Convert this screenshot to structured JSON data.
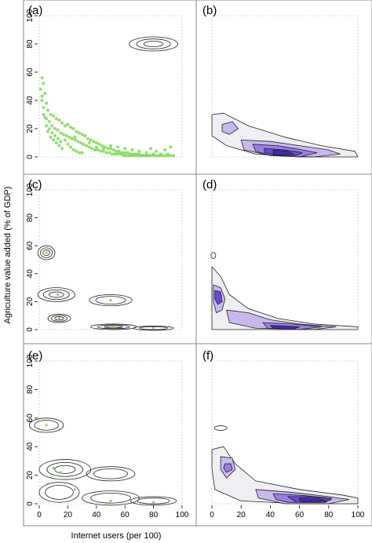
{
  "figure": {
    "ylabel": "Agriculture value added (% of GDP)",
    "xlabel": "Internet users (per 100)",
    "panel_labels": [
      "(a)",
      "(b)",
      "(c)",
      "(d)",
      "(e)",
      "(f)"
    ],
    "x_ticks": [
      "0",
      "20",
      "40",
      "60",
      "80",
      "100"
    ],
    "y_ticks": [
      "0",
      "20",
      "40",
      "60",
      "80",
      "100"
    ]
  },
  "colors": {
    "points": "#7ed957",
    "contour_line": "#222222",
    "fill_levels": [
      "#efeff3",
      "#c8b8ee",
      "#9a7fe6",
      "#6a48d6",
      "#4527b8"
    ],
    "panel_border": "#888888",
    "plot_box": "#cccccc"
  },
  "chart_data": [
    {
      "panel": "(a)",
      "type": "scatter",
      "xlim": [
        0,
        100
      ],
      "ylim": [
        0,
        100
      ],
      "points": [
        [
          2,
          56
        ],
        [
          3,
          52
        ],
        [
          4,
          45
        ],
        [
          2,
          40
        ],
        [
          5,
          38
        ],
        [
          3,
          35
        ],
        [
          6,
          33
        ],
        [
          8,
          30
        ],
        [
          4,
          28
        ],
        [
          10,
          29
        ],
        [
          12,
          27
        ],
        [
          7,
          25
        ],
        [
          14,
          26
        ],
        [
          16,
          24
        ],
        [
          9,
          22
        ],
        [
          18,
          22
        ],
        [
          20,
          23
        ],
        [
          22,
          21
        ],
        [
          11,
          20
        ],
        [
          13,
          19
        ],
        [
          24,
          20
        ],
        [
          26,
          18
        ],
        [
          15,
          17
        ],
        [
          17,
          16
        ],
        [
          28,
          17
        ],
        [
          30,
          16
        ],
        [
          19,
          15
        ],
        [
          21,
          14
        ],
        [
          32,
          15
        ],
        [
          34,
          13
        ],
        [
          23,
          13
        ],
        [
          25,
          12
        ],
        [
          36,
          12
        ],
        [
          38,
          11
        ],
        [
          27,
          11
        ],
        [
          29,
          10
        ],
        [
          40,
          10
        ],
        [
          42,
          9
        ],
        [
          31,
          9
        ],
        [
          33,
          8
        ],
        [
          44,
          8
        ],
        [
          46,
          7
        ],
        [
          35,
          7
        ],
        [
          37,
          6
        ],
        [
          48,
          6
        ],
        [
          50,
          6
        ],
        [
          39,
          5
        ],
        [
          41,
          5
        ],
        [
          52,
          5
        ],
        [
          54,
          4
        ],
        [
          43,
          4
        ],
        [
          45,
          4
        ],
        [
          56,
          4
        ],
        [
          58,
          3
        ],
        [
          47,
          3
        ],
        [
          49,
          3
        ],
        [
          60,
          3
        ],
        [
          62,
          3
        ],
        [
          51,
          2
        ],
        [
          53,
          2
        ],
        [
          64,
          2
        ],
        [
          66,
          2
        ],
        [
          55,
          2
        ],
        [
          57,
          2
        ],
        [
          68,
          2
        ],
        [
          70,
          2
        ],
        [
          59,
          1
        ],
        [
          61,
          1
        ],
        [
          72,
          1
        ],
        [
          74,
          1
        ],
        [
          63,
          1
        ],
        [
          65,
          1
        ],
        [
          76,
          1
        ],
        [
          78,
          1
        ],
        [
          67,
          1
        ],
        [
          69,
          1
        ],
        [
          80,
          1
        ],
        [
          82,
          1
        ],
        [
          71,
          1
        ],
        [
          73,
          1
        ],
        [
          84,
          1
        ],
        [
          86,
          1
        ],
        [
          75,
          1
        ],
        [
          77,
          1
        ],
        [
          88,
          1
        ],
        [
          90,
          1
        ],
        [
          92,
          1
        ],
        [
          94,
          1
        ],
        [
          6,
          18
        ],
        [
          8,
          14
        ],
        [
          10,
          12
        ],
        [
          12,
          10
        ],
        [
          14,
          8
        ],
        [
          16,
          6
        ],
        [
          5,
          22
        ],
        [
          7,
          20
        ],
        [
          9,
          17
        ],
        [
          11,
          15
        ],
        [
          13,
          13
        ],
        [
          15,
          11
        ],
        [
          20,
          9
        ],
        [
          22,
          7
        ],
        [
          24,
          5
        ],
        [
          26,
          4
        ],
        [
          28,
          3
        ],
        [
          30,
          3
        ],
        [
          18,
          12
        ],
        [
          25,
          14
        ],
        [
          35,
          10
        ],
        [
          40,
          7
        ],
        [
          45,
          6
        ],
        [
          50,
          8
        ],
        [
          55,
          7
        ],
        [
          60,
          6
        ],
        [
          65,
          5
        ],
        [
          70,
          4
        ],
        [
          75,
          3
        ],
        [
          80,
          2
        ],
        [
          85,
          2
        ],
        [
          90,
          2
        ],
        [
          92,
          7
        ],
        [
          88,
          5
        ],
        [
          82,
          4
        ],
        [
          78,
          6
        ],
        [
          3,
          30
        ],
        [
          5,
          27
        ],
        [
          1,
          48
        ],
        [
          2,
          43
        ]
      ],
      "ellipses": [
        {
          "cx": 80,
          "cy": 80,
          "rx": 17,
          "ry": 5,
          "levels": 3
        }
      ]
    },
    {
      "panel": "(b)",
      "type": "contour",
      "xlim": [
        0,
        100
      ],
      "ylim": [
        0,
        100
      ],
      "description_levels": 5
    },
    {
      "panel": "(c)",
      "type": "contour",
      "xlim": [
        0,
        100
      ],
      "ylim": [
        0,
        100
      ],
      "points": [
        [
          5,
          55
        ],
        [
          13,
          25
        ],
        [
          14,
          8
        ],
        [
          50,
          21
        ],
        [
          52,
          2
        ],
        [
          80,
          1
        ]
      ],
      "ellipses": [
        {
          "cx": 5,
          "cy": 55,
          "rx": 6,
          "ry": 5,
          "levels": 3
        },
        {
          "cx": 12,
          "cy": 25,
          "rx": 13,
          "ry": 5,
          "levels": 3
        },
        {
          "cx": 14,
          "cy": 8,
          "rx": 8,
          "ry": 3,
          "levels": 3
        },
        {
          "cx": 50,
          "cy": 21,
          "rx": 15,
          "ry": 4,
          "levels": 2
        },
        {
          "cx": 52,
          "cy": 2,
          "rx": 16,
          "ry": 2,
          "levels": 3
        },
        {
          "cx": 80,
          "cy": 1,
          "rx": 14,
          "ry": 1.5,
          "levels": 2
        }
      ]
    },
    {
      "panel": "(d)",
      "type": "contour",
      "xlim": [
        0,
        100
      ],
      "ylim": [
        0,
        100
      ],
      "description_levels": 5
    },
    {
      "panel": "(e)",
      "type": "contour",
      "xlim": [
        0,
        100
      ],
      "ylim": [
        0,
        100
      ],
      "points": [
        [
          5,
          55
        ],
        [
          10,
          25
        ],
        [
          15,
          22
        ],
        [
          25,
          10
        ],
        [
          50,
          2
        ],
        [
          80,
          1
        ]
      ],
      "ellipses": [
        {
          "cx": 5,
          "cy": 55,
          "rx": 12,
          "ry": 5,
          "levels": 2
        },
        {
          "cx": 18,
          "cy": 24,
          "rx": 18,
          "ry": 7,
          "levels": 3
        },
        {
          "cx": 50,
          "cy": 21,
          "rx": 17,
          "ry": 5,
          "levels": 2
        },
        {
          "cx": 14,
          "cy": 8,
          "rx": 14,
          "ry": 7,
          "levels": 2
        },
        {
          "cx": 50,
          "cy": 4,
          "rx": 20,
          "ry": 5,
          "levels": 2
        },
        {
          "cx": 80,
          "cy": 2,
          "rx": 16,
          "ry": 3,
          "levels": 2
        }
      ]
    },
    {
      "panel": "(f)",
      "type": "contour",
      "xlim": [
        0,
        100
      ],
      "ylim": [
        0,
        100
      ],
      "description_levels": 5
    }
  ]
}
